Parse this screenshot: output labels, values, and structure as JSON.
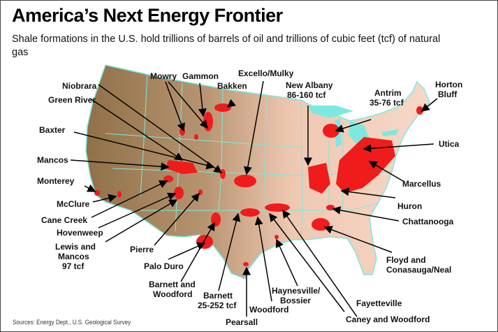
{
  "title": "America’s Next Energy Frontier",
  "subtitle": "Shale formations in the U.S. hold trillions of barrels of oil and trillions of cubic feet (tcf) of natural gas",
  "source": "Sources: Energy Dept., U.S. Geological Survey",
  "colors": {
    "shale": "#f01c1c",
    "west": "#9a7a4e",
    "east": "#f4d2c0",
    "water": "#7ee8e0"
  },
  "labels": {
    "niobrara": "Niobrara",
    "green_river": "Green River",
    "baxter": "Baxter",
    "mancos": "Mancos",
    "monterey": "Monterey",
    "mcclure": "McClure",
    "cane_creek": "Cane Creek",
    "hovenweep": "Hovenweep",
    "lewis_1": "Lewis and",
    "lewis_2": "Mancos",
    "lewis_3": "97 tcf",
    "pierre": "Pierre",
    "palo_duro": "Palo Duro",
    "bw_1": "Barnett and",
    "bw_2": "Woodford",
    "barnett_1": "Barnett",
    "barnett_2": "25-252 tcf",
    "pearsall": "Pearsall",
    "woodford": "Woodford",
    "hb_1": "Haynesville/",
    "hb_2": "Bossier",
    "caney": "Caney and Woodford",
    "fayetteville": "Fayetteville",
    "floyd_1": "Floyd and",
    "floyd_2": "Conasauga/Neal",
    "chattanooga": "Chattanooga",
    "huron": "Huron",
    "marcellus": "Marcellus",
    "utica": "Utica",
    "horton_1": "Horton",
    "horton_2": "Bluff",
    "antrim_1": "Antrim",
    "antrim_2": "35-76 tcf",
    "na_1": "New Albany",
    "na_2": "86-160 tcf",
    "excello": "Excello/Mulky",
    "bakken": "Bakken",
    "mowry": "Mowry",
    "gammon": "Gammon"
  }
}
